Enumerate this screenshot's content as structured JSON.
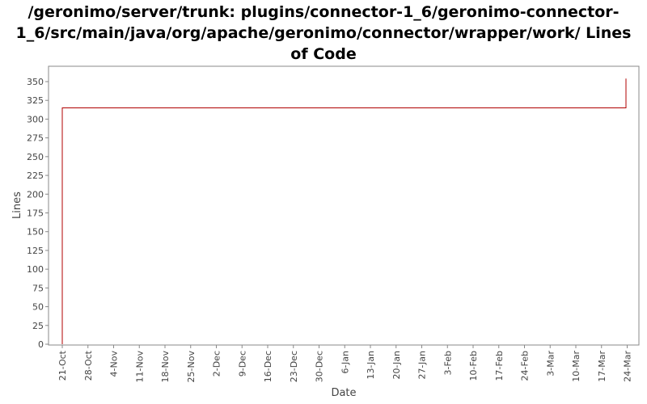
{
  "chart_data": {
    "type": "line",
    "title_lines": [
      "/geronimo/server/trunk: plugins/connector-1_6/geronimo-connector-",
      "1_6/src/main/java/org/apache/geronimo/connector/wrapper/work/ Lines",
      "of Code"
    ],
    "xlabel": "Date",
    "ylabel": "Lines",
    "ylim": [
      0,
      365
    ],
    "yticks": [
      0,
      25,
      50,
      75,
      100,
      125,
      150,
      175,
      200,
      225,
      250,
      275,
      300,
      325,
      350
    ],
    "xticks": [
      "21-Oct",
      "28-Oct",
      "4-Nov",
      "11-Nov",
      "18-Nov",
      "25-Nov",
      "2-Dec",
      "9-Dec",
      "16-Dec",
      "23-Dec",
      "30-Dec",
      "6-Jan",
      "13-Jan",
      "20-Jan",
      "27-Jan",
      "3-Feb",
      "10-Feb",
      "17-Feb",
      "24-Feb",
      "3-Mar",
      "10-Mar",
      "17-Mar",
      "24-Mar"
    ],
    "grid": false,
    "series": [
      {
        "color": "#b00000",
        "points": [
          {
            "x": "21-Oct",
            "y": 0
          },
          {
            "x": "21-Oct",
            "y": 315
          },
          {
            "x": "21-Mar",
            "y": 315
          },
          {
            "x": "21-Mar",
            "y": 354
          }
        ]
      }
    ]
  }
}
